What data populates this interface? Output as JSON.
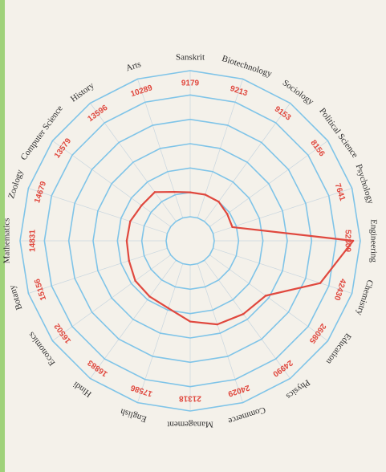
{
  "chart_data": {
    "type": "radar",
    "categories": [
      "Engineering",
      "Chemistry",
      "Education",
      "Physics",
      "Commerce",
      "Management",
      "English",
      "Hindi",
      "Economics",
      "Botany",
      "Mathematics",
      "Zoology",
      "Computer Science",
      "History",
      "Arts",
      "Sanskrit",
      "Biotechnology",
      "Sociology",
      "Political Science",
      "Psychology"
    ],
    "values": [
      52309,
      42430,
      26085,
      24990,
      24029,
      21318,
      17586,
      16883,
      16502,
      15156,
      14831,
      14679,
      13579,
      13596,
      10289,
      9179,
      9213,
      9153,
      8156,
      7641
    ],
    "series": [
      {
        "values": [
          52309,
          42430,
          26085,
          24990,
          24029,
          21318,
          17586,
          16883,
          16502,
          15156,
          14831,
          14679,
          13579,
          13596,
          10289,
          9179,
          9213,
          9153,
          8156,
          7641
        ]
      }
    ],
    "title": "",
    "rlim": [
      0,
      55000
    ],
    "rings": 6,
    "orientation": "rotated 90 degrees clockwise",
    "colors": {
      "series": "#e0483e",
      "rings": "#7fc4e8",
      "value_labels": "#e0483e"
    }
  }
}
